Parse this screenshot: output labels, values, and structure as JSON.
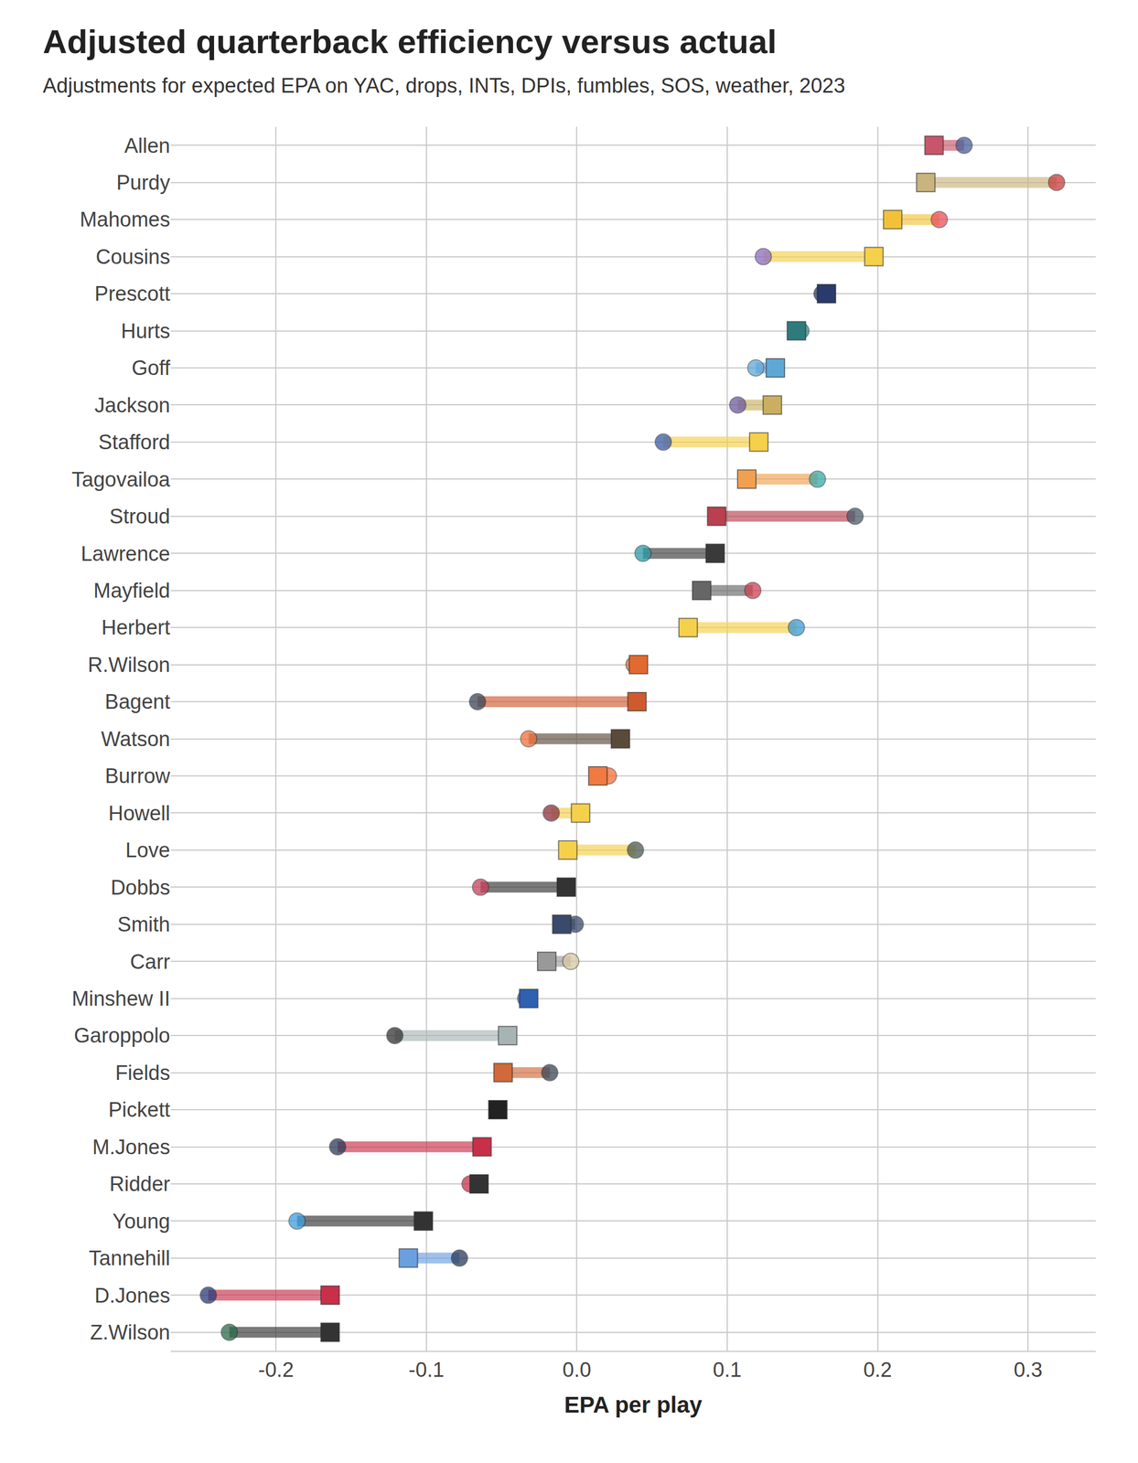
{
  "chart_data": {
    "type": "dumbbell",
    "orientation": "horizontal",
    "title": "Adjusted quarterback efficiency versus actual",
    "subtitle": "Adjustments for expected EPA on YAC, drops, INTs, DPIs, fumbles, SOS, weather, 2023",
    "x_label": "EPA per play",
    "categories": [
      "Allen",
      "Purdy",
      "Mahomes",
      "Cousins",
      "Prescott",
      "Hurts",
      "Goff",
      "Jackson",
      "Stafford",
      "Tagovailoa",
      "Stroud",
      "Lawrence",
      "Mayfield",
      "Herbert",
      "R.Wilson",
      "Bagent",
      "Watson",
      "Burrow",
      "Howell",
      "Love",
      "Dobbs",
      "Smith",
      "Carr",
      "Minshew II",
      "Garoppolo",
      "Fields",
      "Pickett",
      "M.Jones",
      "Ridder",
      "Young",
      "Tannehill",
      "D.Jones",
      "Z.Wilson"
    ],
    "series": [
      {
        "marker": "square",
        "values": [
          0.2375,
          0.232,
          0.21,
          0.1975,
          0.166,
          0.146,
          0.132,
          0.13,
          0.121,
          0.113,
          0.093,
          0.092,
          0.083,
          0.074,
          0.041,
          0.04,
          0.029,
          0.014,
          0.0025,
          -0.006,
          -0.007,
          -0.01,
          -0.02,
          -0.032,
          -0.046,
          -0.049,
          -0.0525,
          -0.063,
          -0.065,
          -0.102,
          -0.112,
          -0.164,
          -0.164
        ],
        "colors": [
          "#c8566a",
          "#c9b37e",
          "#f2c13a",
          "#f5d04a",
          "#2a3a6a",
          "#2e7b7b",
          "#5fa8d6",
          "#c9b060",
          "#f5d04a",
          "#f0a050",
          "#b8404f",
          "#3a3a3a",
          "#666666",
          "#f5d04a",
          "#e06a30",
          "#d05a30",
          "#5a4a3a",
          "#f07a40",
          "#f5d04a",
          "#f5d04a",
          "#333333",
          "#3a4a6a",
          "#999999",
          "#3060b0",
          "#a8b4b4",
          "#d06a3a",
          "#222222",
          "#c8304a",
          "#333333",
          "#333333",
          "#6aa0e0",
          "#c8304a",
          "#333333"
        ]
      },
      {
        "marker": "circle",
        "values": [
          0.2575,
          0.319,
          0.241,
          0.124,
          0.163,
          0.149,
          0.119,
          0.107,
          0.0575,
          0.16,
          0.185,
          0.044,
          0.117,
          0.146,
          0.038,
          -0.066,
          -0.032,
          0.021,
          -0.017,
          0.039,
          -0.064,
          -0.001,
          -0.004,
          -0.034,
          -0.121,
          -0.018,
          -0.0525,
          -0.159,
          -0.071,
          -0.186,
          -0.078,
          -0.245,
          -0.231
        ],
        "colors": [
          "#4a5f9a",
          "#c83c3c",
          "#e8505b",
          "#8a6cc0",
          "#2a3a6a",
          "#2e8b8b",
          "#5fa8d6",
          "#6b5aa0",
          "#3a5aa8",
          "#3aa8a8",
          "#4a5a6a",
          "#2a9aa8",
          "#d04050",
          "#3a9ad8",
          "#e06a30",
          "#3a4555",
          "#f0703a",
          "#f5703a",
          "#8a3040",
          "#4a5a50",
          "#c8405a",
          "#3a4a6a",
          "#d8c8a0",
          "#3060b0",
          "#333333",
          "#3a4555",
          "#222222",
          "#2a3a5a",
          "#c8304a",
          "#3aa0e0",
          "#2a3a5a",
          "#2a3a7a",
          "#2a6a4a"
        ]
      }
    ],
    "xlim": [
      -0.27,
      0.345
    ],
    "xticks": [
      -0.2,
      -0.1,
      {
        "value": 0,
        "label": "0.0"
      },
      0.1,
      0.2,
      0.3
    ],
    "grid": true
  }
}
